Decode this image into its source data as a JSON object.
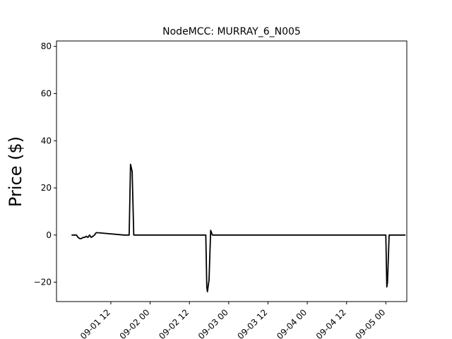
{
  "chart_data": {
    "type": "line",
    "title": "NodeMCC: MURRAY_6_N005",
    "xlabel": "",
    "ylabel": "Price ($)",
    "xaxis_ticks": [
      "09-01 12",
      "09-02 00",
      "09-02 12",
      "09-03 00",
      "09-03 12",
      "09-04 00",
      "09-04 12",
      "09-05 00"
    ],
    "xaxis_tick_hours": [
      12,
      24,
      36,
      48,
      60,
      72,
      84,
      96
    ],
    "xlim_hours": [
      -4.6,
      102.4
    ],
    "yaxis_ticks": [
      -20,
      0,
      20,
      40,
      60,
      80
    ],
    "ylim": [
      -28.2,
      82.3
    ],
    "grid": false,
    "legend": "none",
    "line_color": "#000000",
    "series": [
      {
        "name": "",
        "x_hours": [
          0,
          1,
          1.5,
          2,
          2.5,
          3,
          3.5,
          4,
          4.5,
          5,
          5.5,
          6,
          6.5,
          7,
          7.5,
          8,
          16,
          17,
          17.3,
          17.6,
          18,
          18.5,
          19,
          19.5,
          19.8,
          20,
          20.5,
          21,
          21.5,
          22,
          22.5,
          23,
          23.5,
          24,
          24.5,
          25,
          26,
          26.5,
          27,
          28,
          28.5,
          29,
          29.5,
          30,
          32,
          32.5,
          33,
          33.5,
          34,
          35,
          36,
          37,
          38,
          39,
          40,
          41,
          41.3,
          41.5,
          42,
          42.5,
          43,
          43.5,
          44,
          44.5,
          45,
          46,
          46.5,
          47,
          47.5,
          48,
          48.5,
          49,
          49.5,
          50,
          50.5,
          51,
          51.5,
          52,
          52.5,
          53,
          53.5,
          54,
          54.5,
          55,
          56,
          57,
          58,
          59,
          60,
          61,
          62,
          63,
          64,
          65,
          66,
          67,
          68,
          69,
          70,
          71,
          72,
          72.3,
          72.5,
          73,
          73.5,
          74,
          74.5,
          75,
          75.5,
          76,
          76.5,
          77,
          77.5,
          78,
          78.5,
          79,
          79.5,
          80,
          80.5,
          81,
          81.5,
          82,
          82.5,
          83,
          83.5,
          84,
          85,
          86,
          87,
          88,
          88.5,
          89,
          89.5,
          90,
          91,
          92,
          93,
          94,
          95,
          96,
          96.3,
          96.5,
          97,
          97.5,
          98,
          98.5,
          99,
          99.5,
          100,
          100.5,
          101,
          101.5,
          102
        ],
        "values": [
          0,
          0,
          0,
          -1,
          -1.5,
          -1.5,
          -1,
          -1,
          -0.5,
          -1,
          0,
          -1,
          -0.5,
          0,
          1,
          1,
          0,
          0,
          0,
          0,
          30,
          27,
          0,
          0,
          0,
          0,
          0,
          0,
          0,
          0,
          0,
          0,
          0,
          0,
          0,
          0,
          0,
          0,
          0,
          0,
          0,
          0,
          0,
          0,
          0,
          0,
          0,
          0,
          0,
          0,
          0,
          0,
          0,
          0,
          0,
          0,
          -22,
          -24,
          -19,
          2,
          0,
          0,
          0,
          0,
          0,
          0,
          0,
          0,
          0,
          0,
          0,
          0,
          0,
          0,
          0,
          0,
          0,
          0,
          0,
          0,
          0,
          0,
          0,
          0,
          0,
          0,
          0,
          0,
          0,
          0,
          0,
          0,
          0,
          0,
          0,
          0,
          0,
          0,
          0,
          0,
          0,
          0,
          0,
          0,
          0,
          0,
          0,
          0,
          0,
          0,
          0,
          0,
          0,
          0,
          0,
          0,
          0,
          0,
          0,
          0,
          0,
          0,
          0,
          0,
          0,
          0,
          0,
          0,
          0,
          0,
          0,
          0,
          0,
          0,
          0,
          0,
          0,
          0,
          0,
          0,
          -22,
          -20,
          0,
          0,
          0,
          0,
          0,
          0,
          0,
          0,
          0,
          0,
          0
        ]
      }
    ]
  }
}
